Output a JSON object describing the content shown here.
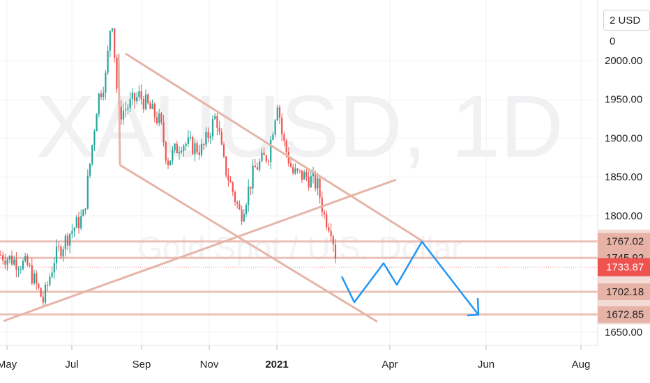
{
  "symbol_watermark": "XAUUSD, 1D",
  "name_watermark": "Gold Spot / U.S. Dollar",
  "currency_label": "2 USD 0",
  "chart_data": {
    "type": "candlestick",
    "title": "",
    "x_ticks": [
      "May",
      "Jul",
      "Sep",
      "Nov",
      "2021",
      "Apr",
      "Jun",
      "Aug"
    ],
    "y_ticks": [
      "2000.00",
      "1950.00",
      "1900.00",
      "1850.00",
      "1800.00",
      "1650.00"
    ],
    "ylim": [
      1640,
      2080
    ],
    "price_levels": [
      {
        "value": 1767.02,
        "label": "1767.02"
      },
      {
        "value": 1745.92,
        "label": "1745.92"
      },
      {
        "value": 1702.18,
        "label": "1702.18"
      },
      {
        "value": 1672.85,
        "label": "1672.85"
      }
    ],
    "last_price": {
      "value": 1733.87,
      "label": "1733.87"
    },
    "colors": {
      "up": "#26a69a",
      "down": "#ef5350",
      "trendline": "#e5b5a8",
      "level_band": "#e8b6aa",
      "projection": "#2196f3",
      "last_price_tag": "#ef5350"
    }
  }
}
